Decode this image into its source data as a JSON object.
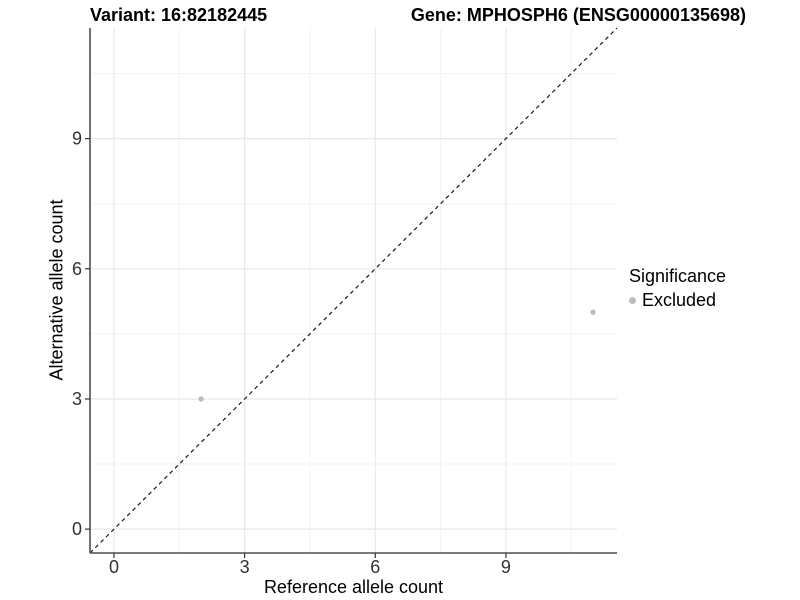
{
  "header": {
    "variant_title": "Variant: 16:82182445",
    "gene_title": "Gene: MPHOSPH6 (ENSG00000135698)"
  },
  "legend": {
    "title": "Significance",
    "items": [
      {
        "label": "Excluded",
        "color": "#bdbdbd"
      }
    ]
  },
  "chart_data": {
    "type": "scatter",
    "title_left": "Variant: 16:82182445",
    "title_right": "Gene: MPHOSPH6 (ENSG00000135698)",
    "xlabel": "Reference allele count",
    "ylabel": "Alternative allele count",
    "series": [
      {
        "name": "Excluded",
        "color": "#bdbdbd",
        "points": [
          {
            "x": 2,
            "y": 3
          },
          {
            "x": 11,
            "y": 5
          }
        ]
      }
    ],
    "xlim": [
      -0.55,
      11.55
    ],
    "ylim": [
      -0.55,
      11.55
    ],
    "x_ticks": [
      0,
      3,
      6,
      9
    ],
    "y_ticks": [
      0,
      3,
      6,
      9
    ],
    "x_minor_gridlines": [
      1.5,
      4.5,
      7.5,
      10.5
    ],
    "y_minor_gridlines": [
      1.5,
      4.5,
      7.5,
      10.5
    ],
    "reference_line": {
      "type": "identity",
      "equation": "y = x",
      "style": "dashed",
      "color": "#1a1a1a"
    },
    "grid": true,
    "legend_position": "right-center"
  },
  "colors": {
    "background": "#ffffff",
    "major_gridline": "#e8e8e8",
    "minor_gridline": "#f3f3f3",
    "axis_line": "#4d4d4d",
    "tick_mark": "#333333",
    "tick_label": "#333333",
    "point": "#bdbdbd"
  }
}
